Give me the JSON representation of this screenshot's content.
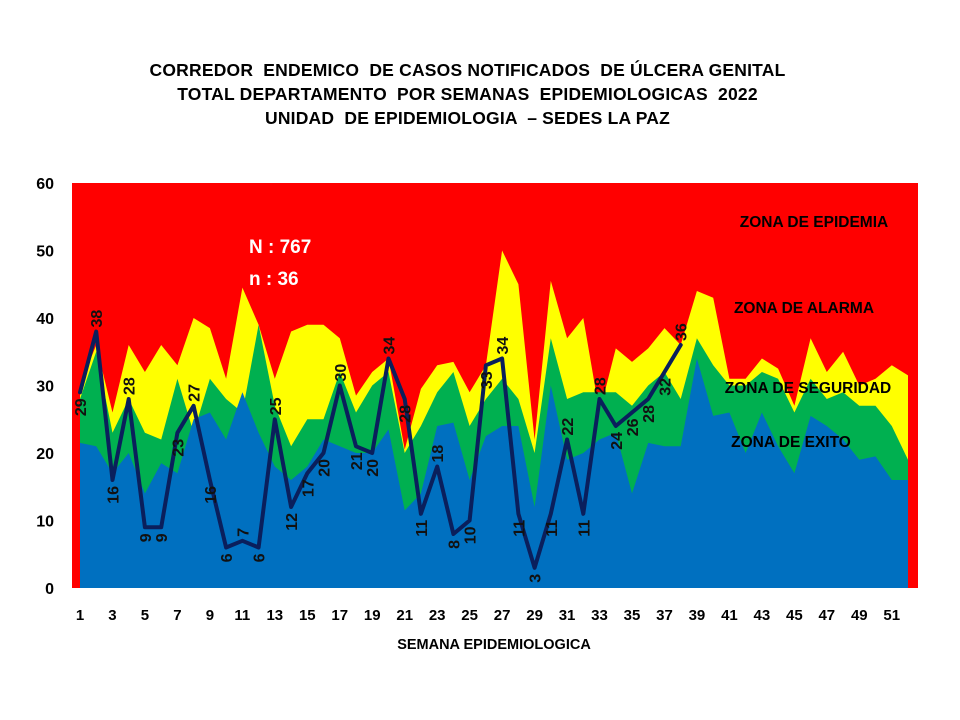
{
  "title_lines": [
    "CORREDOR  ENDEMICO  DE CASOS NOTIFICADOS  DE ÚLCERA GENITAL",
    "TOTAL DEPARTAMENTO  POR SEMANAS  EPIDEMIOLOGICAS  2022",
    "UNIDAD  DE EPIDEMIOLOGIA  – SEDES LA PAZ"
  ],
  "colors": {
    "epidemia": "#ff0000",
    "alarma": "#ffff00",
    "seguridad": "#00b050",
    "exito": "#0070c0",
    "line": "#0a1f5c"
  },
  "chart_data": {
    "type": "area",
    "title": "CORREDOR ENDEMICO DE CASOS NOTIFICADOS DE ÚLCERA GENITAL TOTAL DEPARTAMENTO POR SEMANAS EPIDEMIOLOGICAS 2022 UNIDAD DE EPIDEMIOLOGIA – SEDES LA PAZ",
    "xlabel": "SEMANA EPIDEMIOLOGICA",
    "ylabel": "",
    "ylim": [
      0,
      60
    ],
    "yticks": [
      0,
      10,
      20,
      30,
      40,
      50,
      60
    ],
    "xticks": [
      1,
      3,
      5,
      7,
      9,
      11,
      13,
      15,
      17,
      19,
      21,
      23,
      25,
      27,
      29,
      31,
      33,
      35,
      37,
      39,
      41,
      43,
      45,
      47,
      49,
      51
    ],
    "x": [
      1,
      2,
      3,
      4,
      5,
      6,
      7,
      8,
      9,
      10,
      11,
      12,
      13,
      14,
      15,
      16,
      17,
      18,
      19,
      20,
      21,
      22,
      23,
      24,
      25,
      26,
      27,
      28,
      29,
      30,
      31,
      32,
      33,
      34,
      35,
      36,
      37,
      38,
      39,
      40,
      41,
      42,
      43,
      44,
      45,
      46,
      47,
      48,
      49,
      50,
      51,
      52
    ],
    "grid": false,
    "legend": "inside-right",
    "zone_labels": {
      "epidemia": "ZONA DE EPIDEMIA",
      "alarma": "ZONA DE ALARMA",
      "seguridad": "ZONA DE  SEGURIDAD",
      "exito": "ZONA DE  EXITO"
    },
    "annotations": [
      "N : 767",
      "n : 36"
    ],
    "zones": {
      "exito": [
        21.5,
        21,
        17,
        20,
        14,
        18.5,
        17,
        25,
        26,
        22,
        29,
        23,
        18,
        16,
        18,
        22,
        21,
        20,
        20,
        23.5,
        11.5,
        14,
        24,
        24.5,
        16,
        22.5,
        24,
        24,
        12,
        30,
        19,
        20,
        22,
        23,
        14,
        21.5,
        21,
        21,
        34,
        25.5,
        26,
        20,
        26,
        21,
        17,
        25.5,
        24,
        22,
        19,
        19.5,
        16,
        16
      ],
      "seguridad": [
        28,
        35,
        23,
        28,
        23,
        22,
        31,
        23,
        31,
        28,
        26,
        39,
        27,
        21,
        25,
        25,
        32,
        26,
        30,
        32,
        20,
        24,
        29,
        32,
        24,
        28,
        31,
        28,
        20,
        37,
        28,
        29,
        29,
        29,
        27,
        30,
        32,
        28,
        37,
        33,
        30,
        30,
        32,
        31,
        26,
        31,
        28,
        29,
        27,
        27,
        24,
        19
      ],
      "alarma": [
        30,
        36,
        26,
        36,
        32,
        36,
        33,
        40,
        38.5,
        31,
        44.5,
        39,
        31,
        38,
        39,
        39,
        37,
        28.5,
        32,
        34,
        20.5,
        29.5,
        33,
        33.5,
        29,
        33,
        50,
        45,
        22,
        45.5,
        37,
        40,
        26,
        35.5,
        33.5,
        35.5,
        38.5,
        36,
        44,
        43,
        31,
        31,
        34,
        32.5,
        27,
        37,
        32,
        35,
        30,
        31,
        33,
        31.5
      ]
    },
    "series": [
      {
        "name": "",
        "x": [
          1,
          2,
          3,
          4,
          5,
          6,
          7,
          8,
          9,
          10,
          11,
          12,
          13,
          14,
          15,
          16,
          17,
          18,
          19,
          20,
          21,
          22,
          23,
          24,
          25,
          26,
          27,
          28,
          29,
          30,
          31,
          32,
          33,
          34,
          35,
          36,
          37,
          38
        ],
        "values": [
          29,
          38,
          16,
          28,
          9,
          9,
          23,
          27,
          16,
          6,
          7,
          6,
          25,
          12,
          17,
          20,
          30,
          21,
          20,
          34,
          28,
          11,
          18,
          8,
          10,
          33,
          34,
          11,
          3,
          11,
          22,
          11,
          28,
          24,
          26,
          28,
          32,
          36
        ]
      }
    ]
  }
}
